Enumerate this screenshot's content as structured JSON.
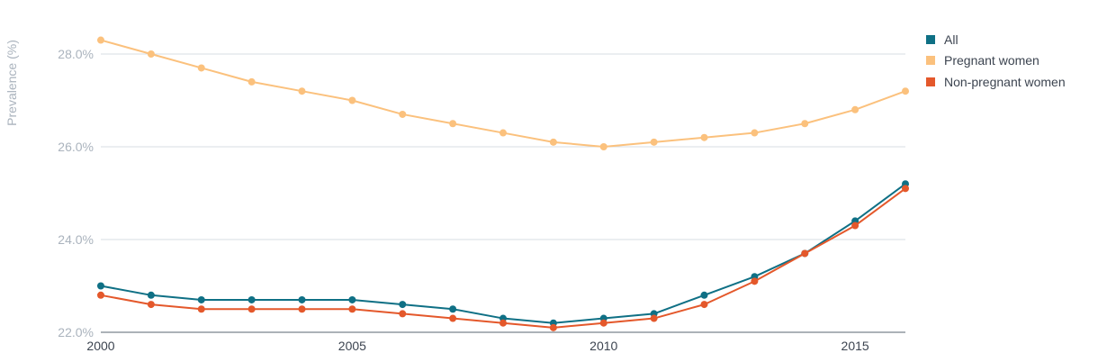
{
  "chart_data": {
    "type": "line",
    "title": "",
    "xlabel": "",
    "ylabel": "Prevalence (%)",
    "x": [
      2000,
      2001,
      2002,
      2003,
      2004,
      2005,
      2006,
      2007,
      2008,
      2009,
      2010,
      2011,
      2012,
      2013,
      2014,
      2015,
      2016
    ],
    "xlim": [
      2000,
      2016
    ],
    "ylim": [
      22.0,
      28.0
    ],
    "x_ticks": [
      {
        "value": 2000,
        "label": "2000"
      },
      {
        "value": 2005,
        "label": "2005"
      },
      {
        "value": 2010,
        "label": "2010"
      },
      {
        "value": 2015,
        "label": "2015"
      }
    ],
    "y_ticks": [
      {
        "value": 22.0,
        "label": "22.0%"
      },
      {
        "value": 24.0,
        "label": "24.0%"
      },
      {
        "value": 26.0,
        "label": "26.0%"
      },
      {
        "value": 28.0,
        "label": "28.0%"
      }
    ],
    "grid": true,
    "legend_position": "top-right",
    "series": [
      {
        "name": "All",
        "color": "#0f7085",
        "values": [
          23.0,
          22.8,
          22.7,
          22.7,
          22.7,
          22.7,
          22.6,
          22.5,
          22.3,
          22.2,
          22.3,
          22.4,
          22.8,
          23.2,
          23.7,
          24.4,
          25.2
        ]
      },
      {
        "name": "Pregnant women",
        "color": "#fbc17d",
        "values": [
          28.3,
          28.0,
          27.7,
          27.4,
          27.2,
          27.0,
          26.7,
          26.5,
          26.3,
          26.1,
          26.0,
          26.1,
          26.2,
          26.3,
          26.5,
          26.8,
          27.2
        ]
      },
      {
        "name": "Non-pregnant women",
        "color": "#e4582b",
        "values": [
          22.8,
          22.6,
          22.5,
          22.5,
          22.5,
          22.5,
          22.4,
          22.3,
          22.2,
          22.1,
          22.2,
          22.3,
          22.6,
          23.1,
          23.7,
          24.3,
          25.1
        ]
      }
    ]
  }
}
